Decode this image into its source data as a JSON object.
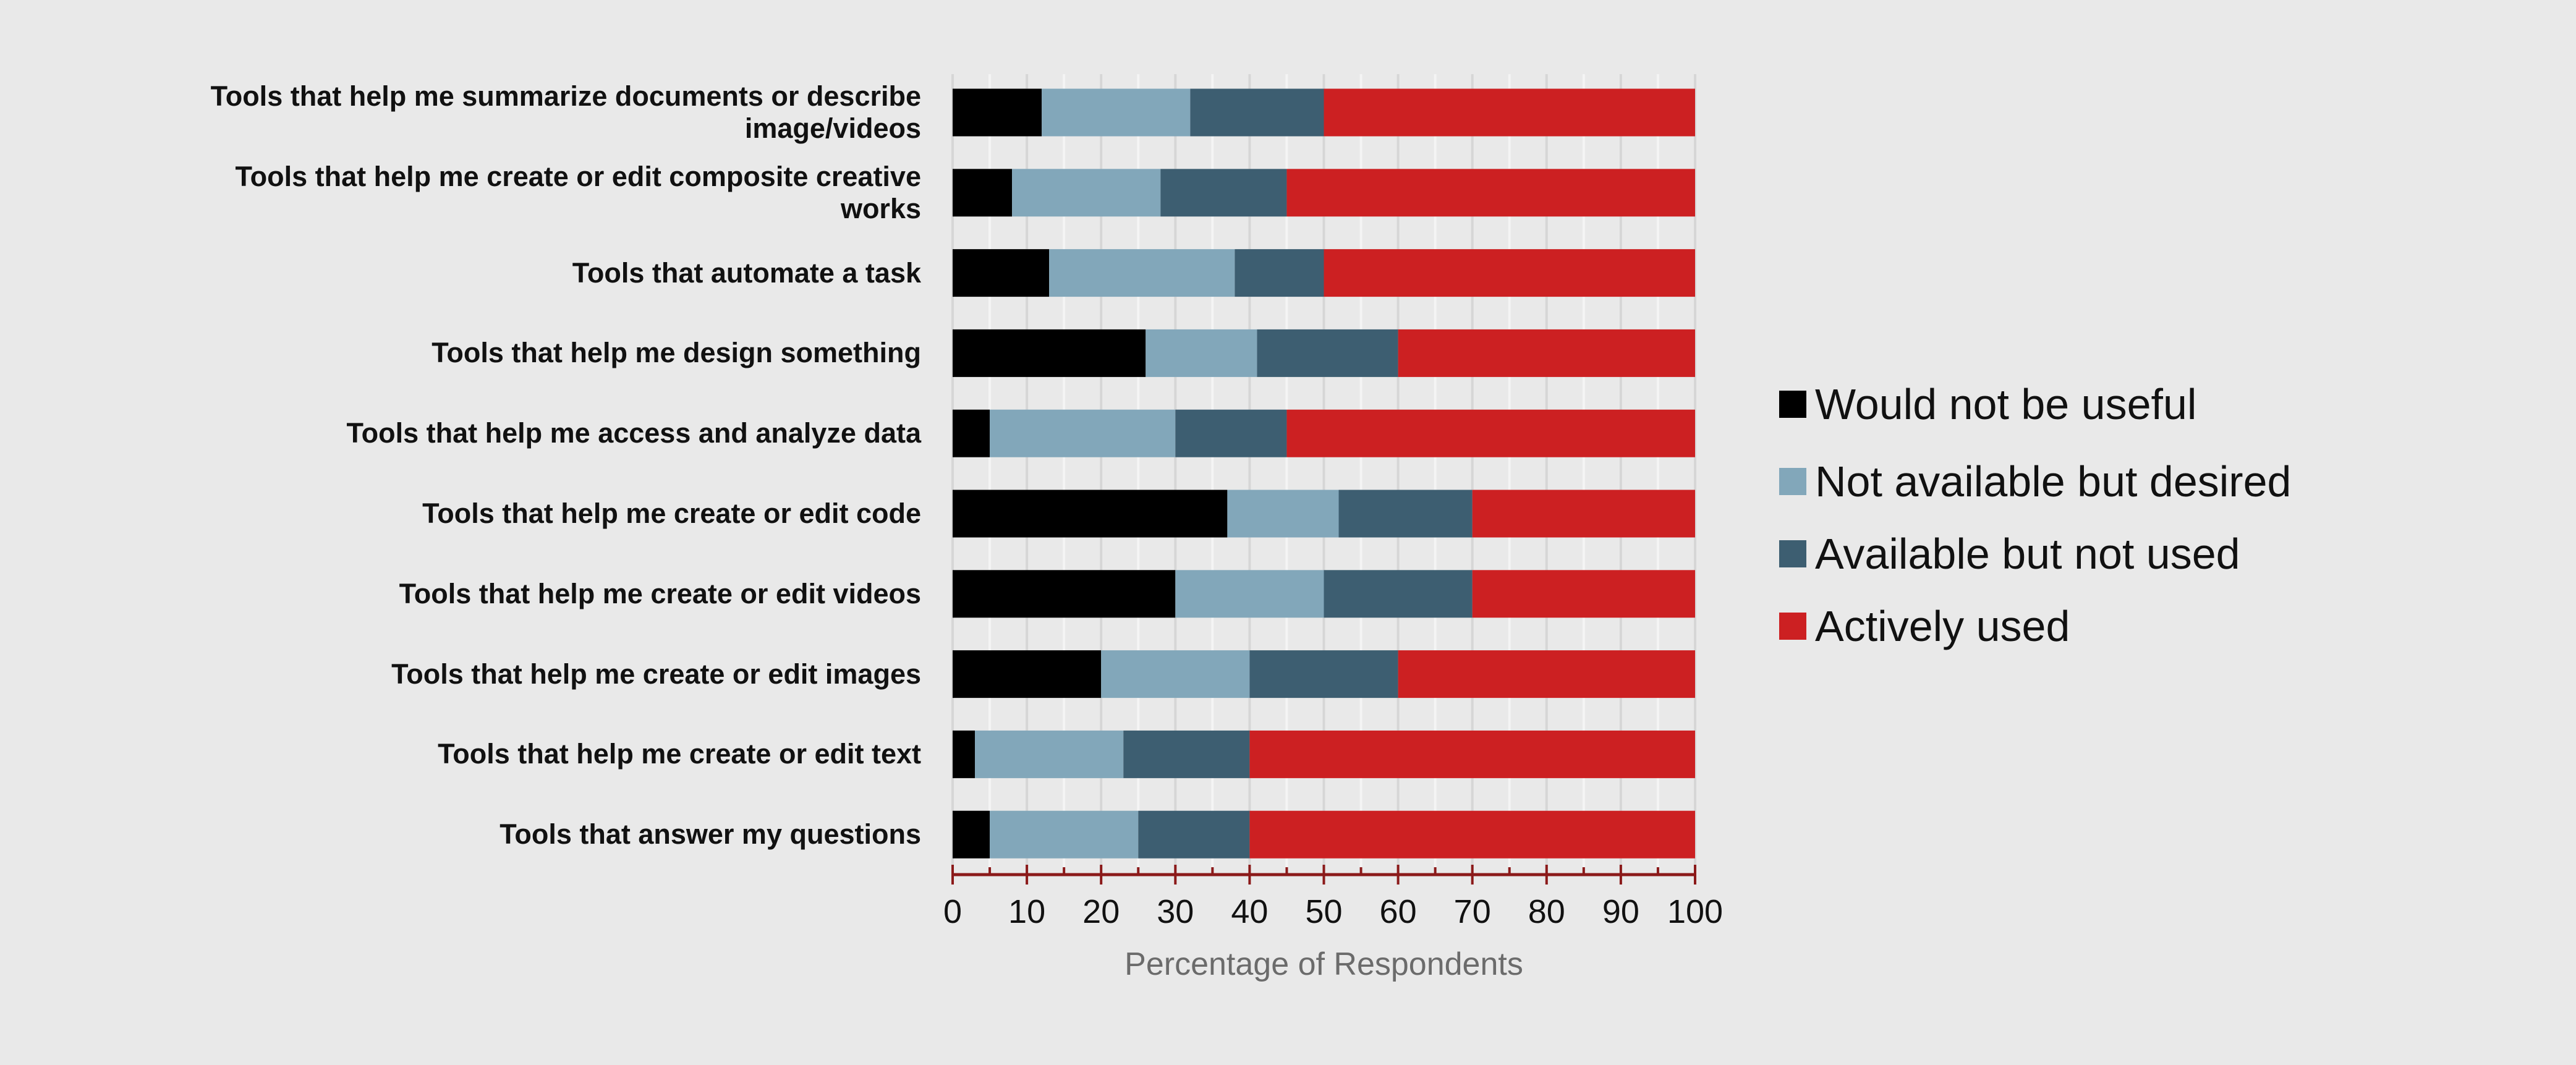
{
  "chart_data": {
    "type": "bar",
    "orientation": "horizontal",
    "stacked": true,
    "categories": [
      "Tools that help me summarize documents or describe image/videos",
      "Tools that help me create or edit composite creative works",
      "Tools that automate a task",
      "Tools that help me design something",
      "Tools that help me access and analyze data",
      "Tools that help me create or edit code",
      "Tools that help me create or edit videos",
      "Tools that help me create or edit images",
      "Tools that help me create or edit text",
      "Tools that answer my questions"
    ],
    "series": [
      {
        "name": "Would not be useful",
        "color": "#000000",
        "values": [
          12,
          8,
          13,
          26,
          5,
          37,
          30,
          20,
          3,
          5
        ]
      },
      {
        "name": "Not available but desired",
        "color": "#82a7ba",
        "values": [
          20,
          20,
          25,
          15,
          25,
          15,
          20,
          20,
          20,
          20
        ]
      },
      {
        "name": "Available but not used",
        "color": "#3d5e71",
        "values": [
          18,
          17,
          12,
          19,
          15,
          18,
          20,
          20,
          17,
          15
        ]
      },
      {
        "name": "Actively used",
        "color": "#cc2022",
        "values": [
          50,
          55,
          50,
          40,
          55,
          30,
          30,
          40,
          60,
          60
        ]
      }
    ],
    "xlabel": "Percentage of Respondents",
    "ylabel": "",
    "xlim": [
      0,
      100
    ],
    "xticks": [
      "0",
      "10",
      "20",
      "30",
      "40",
      "50",
      "60",
      "70",
      "80",
      "90",
      "100"
    ],
    "grid": true,
    "legend_position": "right",
    "axis_color": "#8b1a1a",
    "background": "#e9e9e9"
  }
}
